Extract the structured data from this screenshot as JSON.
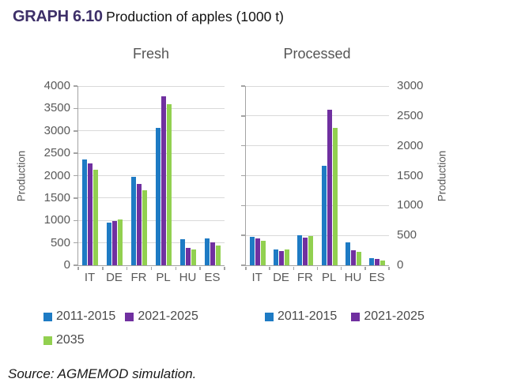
{
  "header": {
    "graph_label": "GRAPH 6.10",
    "title": "Production of apples (1000 t)"
  },
  "source": "Source: AGMEMOD simulation.",
  "colors": {
    "blue": "#1E7BC4",
    "purple": "#7030A0",
    "green": "#92D050",
    "title_accent": "#3D2F68",
    "axis_text": "#595959",
    "gridline": "#D9D9D9",
    "axis_line": "#A3A3A3"
  },
  "chart_data": [
    {
      "type": "bar",
      "title": "Fresh",
      "ylabel": "Production",
      "ylabel_side": "left",
      "yaxis_labels_side": "left",
      "ylim": [
        0,
        4000
      ],
      "yticks": [
        0,
        500,
        1000,
        1500,
        2000,
        2500,
        3000,
        3500,
        4000
      ],
      "grid": true,
      "categories": [
        "IT",
        "DE",
        "FR",
        "PL",
        "HU",
        "ES"
      ],
      "series": [
        {
          "name": "2011-2015",
          "color_key": "blue",
          "values": [
            2370,
            950,
            1970,
            3070,
            590,
            600
          ]
        },
        {
          "name": "2021-2025",
          "color_key": "purple",
          "values": [
            2280,
            980,
            1810,
            3770,
            380,
            520
          ]
        },
        {
          "name": "2035",
          "color_key": "green",
          "values": [
            2130,
            1030,
            1680,
            3600,
            350,
            440
          ]
        }
      ],
      "legend_rows": [
        [
          "2011-2015",
          "2021-2025"
        ],
        [
          "2035"
        ]
      ],
      "legend_position": "bottom"
    },
    {
      "type": "bar",
      "title": "Processed",
      "ylabel": "Production",
      "ylabel_side": "right",
      "yaxis_labels_side": "right",
      "ylim": [
        0,
        3000
      ],
      "yticks": [
        0,
        500,
        1000,
        1500,
        2000,
        2500,
        3000
      ],
      "grid": true,
      "categories": [
        "IT",
        "DE",
        "FR",
        "PL",
        "HU",
        "ES"
      ],
      "series": [
        {
          "name": "2011-2015",
          "color_key": "blue",
          "values": [
            480,
            270,
            500,
            1670,
            385,
            120
          ]
        },
        {
          "name": "2021-2025",
          "color_key": "purple",
          "values": [
            450,
            240,
            460,
            2610,
            255,
            105
          ]
        },
        {
          "name": "2035",
          "color_key": "green",
          "values": [
            415,
            265,
            485,
            2300,
            230,
            85
          ]
        }
      ],
      "legend_rows": [
        [
          "2011-2015",
          "2021-2025"
        ]
      ],
      "legend_position": "bottom"
    }
  ]
}
